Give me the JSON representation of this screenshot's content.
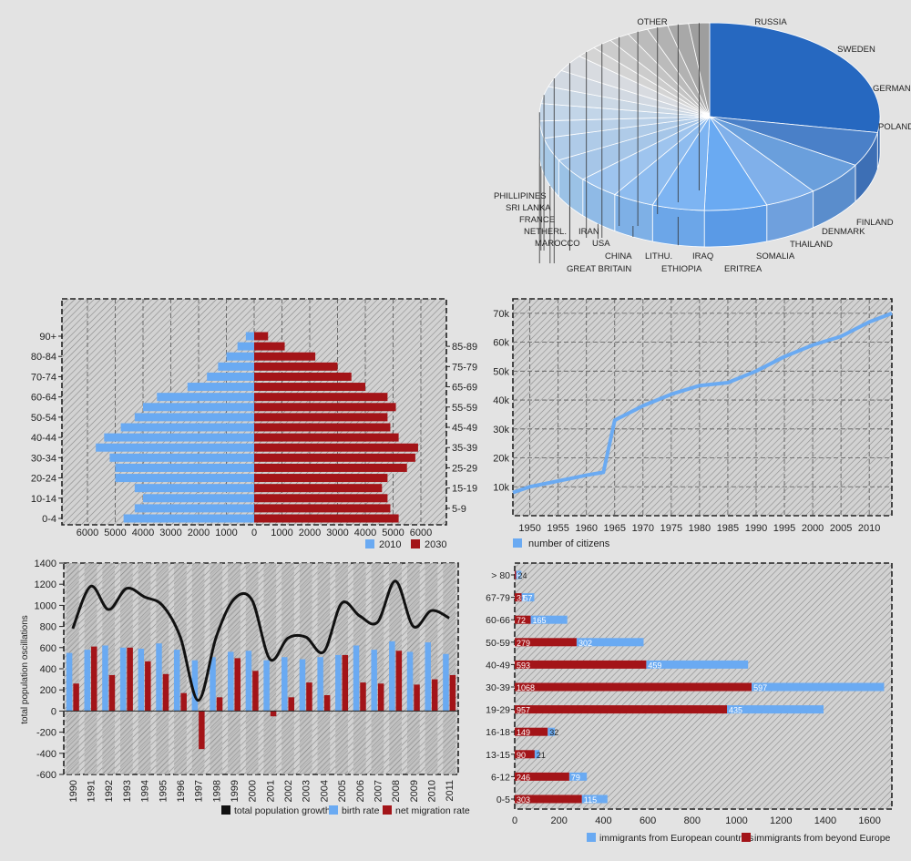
{
  "colors": {
    "blue": "#6aaaf2",
    "red": "#a31418",
    "black": "#111111",
    "frame": "#222222",
    "hatch": "#8a8a8a",
    "background": "#e3e3e3"
  },
  "chart_data": [
    {
      "type": "pie",
      "style": "3d",
      "slices": [
        {
          "label": "OTHER",
          "value": 28
        },
        {
          "label": "RUSSIA",
          "value": 6
        },
        {
          "label": "SWEDEN",
          "value": 6
        },
        {
          "label": "GERMANY",
          "value": 5
        },
        {
          "label": "POLAND",
          "value": 6
        },
        {
          "label": "FINLAND",
          "value": 5
        },
        {
          "label": "DENMARK",
          "value": 4
        },
        {
          "label": "THAILAND",
          "value": 4
        },
        {
          "label": "SOMALIA",
          "value": 4
        },
        {
          "label": "ERITREA",
          "value": 4
        },
        {
          "label": "IRAQ",
          "value": 3
        },
        {
          "label": "ETHIOPIA",
          "value": 3
        },
        {
          "label": "LITHU.",
          "value": 3
        },
        {
          "label": "GREAT BRITAIN",
          "value": 3
        },
        {
          "label": "CHINA",
          "value": 3
        },
        {
          "label": "USA",
          "value": 2
        },
        {
          "label": "MAROCCO",
          "value": 2
        },
        {
          "label": "IRAN",
          "value": 2
        },
        {
          "label": "NETHERL.",
          "value": 2
        },
        {
          "label": "FRANCE",
          "value": 2
        },
        {
          "label": "SRI LANKA",
          "value": 2
        },
        {
          "label": "PHILLIPINES",
          "value": 2
        }
      ]
    },
    {
      "type": "bar",
      "orientation": "horizontal",
      "subtype": "population-pyramid",
      "categories": [
        "0-4",
        "5-9",
        "10-14",
        "15-19",
        "20-24",
        "25-29",
        "30-34",
        "35-39",
        "40-44",
        "45-49",
        "50-54",
        "55-59",
        "60-64",
        "65-69",
        "70-74",
        "75-79",
        "80-84",
        "85-89",
        "90+"
      ],
      "left_tick_labels": [
        "0-4",
        "10-14",
        "20-24",
        "30-34",
        "40-44",
        "50-54",
        "60-64",
        "70-74",
        "80-84",
        "90+"
      ],
      "right_tick_labels": [
        "5-9",
        "15-19",
        "25-29",
        "35-39",
        "45-49",
        "55-59",
        "65-69",
        "75-79",
        "85-89"
      ],
      "series": [
        {
          "name": "2010",
          "values": [
            4700,
            4300,
            4000,
            4300,
            5000,
            5000,
            5200,
            5700,
            5400,
            4800,
            4300,
            4000,
            3500,
            2400,
            1700,
            1300,
            1000,
            600,
            300
          ]
        },
        {
          "name": "2030",
          "values": [
            5200,
            4900,
            4800,
            4600,
            4800,
            5500,
            5800,
            5900,
            5200,
            4900,
            4800,
            5100,
            4800,
            4000,
            3500,
            3000,
            2200,
            1100,
            500
          ]
        }
      ],
      "xlim": [
        -6500,
        6800
      ],
      "xticks": [
        "6000",
        "5000",
        "4000",
        "3000",
        "2000",
        "1000",
        "0",
        "1000",
        "2000",
        "3000",
        "4000",
        "5000",
        "6000"
      ],
      "legend_position": "bottom-right"
    },
    {
      "type": "line",
      "series": [
        {
          "name": "number of citizens",
          "x": [
            1947,
            1950,
            1955,
            1960,
            1963,
            1965,
            1970,
            1975,
            1980,
            1985,
            1990,
            1995,
            2000,
            2005,
            2010,
            2014
          ],
          "y": [
            8000,
            10000,
            12000,
            14000,
            15000,
            33000,
            38000,
            42000,
            45000,
            46000,
            50000,
            55000,
            59000,
            62000,
            67000,
            70000
          ]
        }
      ],
      "xticks": [
        "1950",
        "1955",
        "1960",
        "1965",
        "1970",
        "1975",
        "1980",
        "1985",
        "1990",
        "1995",
        "2000",
        "2005",
        "2010"
      ],
      "yticks": [
        "10k",
        "20k",
        "30k",
        "40k",
        "50k",
        "60k",
        "70k"
      ],
      "xlim": [
        1947,
        2014
      ],
      "ylim": [
        0,
        75000
      ],
      "grid": true,
      "legend_position": "bottom-left"
    },
    {
      "type": "bar",
      "subtype": "bar-with-line",
      "categories": [
        "1990",
        "1991",
        "1992",
        "1993",
        "1994",
        "1995",
        "1996",
        "1997",
        "1998",
        "1999",
        "2000",
        "2001",
        "2002",
        "2003",
        "2004",
        "2005",
        "2006",
        "2007",
        "2008",
        "2009",
        "2010",
        "2011"
      ],
      "series": [
        {
          "name": "birth rate",
          "values": [
            550,
            580,
            620,
            600,
            590,
            640,
            580,
            480,
            510,
            560,
            570,
            480,
            510,
            490,
            510,
            530,
            620,
            580,
            660,
            560,
            650,
            540
          ]
        },
        {
          "name": "net migration rate",
          "values": [
            260,
            610,
            340,
            600,
            470,
            350,
            170,
            -360,
            130,
            500,
            380,
            -50,
            130,
            270,
            150,
            530,
            270,
            260,
            570,
            250,
            300,
            340
          ]
        },
        {
          "name": "total population growth",
          "type": "line",
          "values": [
            780,
            1180,
            960,
            1160,
            1080,
            1000,
            700,
            100,
            700,
            1060,
            1050,
            490,
            690,
            700,
            560,
            1020,
            900,
            840,
            1230,
            800,
            950,
            880
          ]
        }
      ],
      "ylabel": "total population oscillations",
      "yticks": [
        "1400",
        "1200",
        "1000",
        "800",
        "600",
        "400",
        "200",
        "0",
        "-200",
        "-400",
        "-600"
      ],
      "ylim": [
        -600,
        1400
      ],
      "legend_position": "bottom-right"
    },
    {
      "type": "bar",
      "orientation": "horizontal",
      "stacked": true,
      "categories": [
        "0-5",
        "6-12",
        "13-15",
        "16-18",
        "19-29",
        "30-39",
        "40-49",
        "50-59",
        "60-66",
        "67-79",
        "> 80"
      ],
      "series": [
        {
          "name": "immigrants from beyond Europe",
          "values": [
            303,
            246,
            90,
            149,
            957,
            1068,
            593,
            279,
            72,
            31,
            6
          ]
        },
        {
          "name": "immigrants from European countries",
          "values": [
            115,
            79,
            21,
            32,
            435,
            597,
            459,
            302,
            165,
            57,
            24
          ]
        }
      ],
      "xticks": [
        "0",
        "200",
        "400",
        "600",
        "800",
        "1000",
        "1200",
        "1400",
        "1600"
      ],
      "xlim": [
        0,
        1700
      ],
      "legend_position": "bottom"
    }
  ]
}
